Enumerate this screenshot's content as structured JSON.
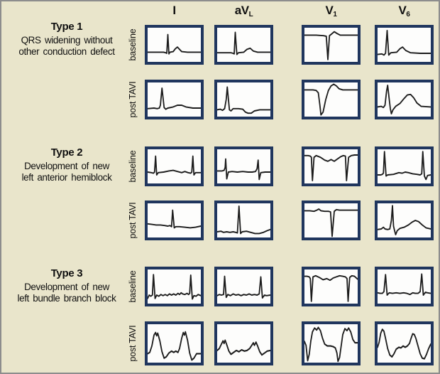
{
  "figure": {
    "columns": [
      {
        "main": "I",
        "sub": ""
      },
      {
        "main": "aV",
        "sub": "L"
      },
      {
        "main": "V",
        "sub": "1"
      },
      {
        "main": "V",
        "sub": "6"
      }
    ],
    "row_labels": {
      "baseline": "baseline",
      "post_tavi": "post TAVI"
    },
    "sections": [
      {
        "title": "Type 1",
        "desc1": "QRS widening without",
        "desc2": "other conduction defect"
      },
      {
        "title": "Type 2",
        "desc1": "Development of new",
        "desc2": "left anterior hemiblock"
      },
      {
        "title": "Type 3",
        "desc1": "Development of new",
        "desc2": "left bundle branch block"
      }
    ]
  },
  "colors": {
    "background": "#e9e5cb",
    "panel_border": "#20365e",
    "trace": "#1c1c1c",
    "frame_border": "#8d8d8d",
    "panel_bg": "#fdfdfc",
    "text": "#101010"
  },
  "waves": {
    "t1_baseline": [
      "0,43 22,43 30,43 34,44 36,45 38,12 40,46 42,43 48,42 52,37 56,34 60,38 64,42 75,43 100,43",
      "0,44 16,44 26,44 30,45 32,46 34,8 37,47 40,44 50,43 56,38 62,36 68,41 76,43 100,43",
      "0,13 22,13 36,14 41,15 44,56 47,14 51,11 56,7 61,10 67,13 80,13 100,13",
      "0,47 8,46 12,48 15,45 18,5 21,48 25,44 36,43 42,37 47,34 53,40 62,44 80,45 100,45"
    ],
    "t1_post": [
      "0,46 12,45 18,46 22,45 24,40 27,10 31,44 34,47 38,45 48,43 56,40 64,40 72,43 85,45 100,45",
      "0,48 6,47 10,49 14,46 17,30 19,8 23,48 26,50 30,46 40,46 48,47 53,52 58,54 64,54 70,50 80,48 100,48",
      "0,13 16,13 22,14 26,18 29,40 31,57 35,52 40,30 45,14 50,6 55,3 60,6 65,11 72,13 100,13",
      "0,43 7,42 11,44 14,40 17,15 19,5 22,30 24,46 26,55 29,48 34,42 42,37 50,28 56,22 62,21 68,27 74,36 82,42 100,43"
    ],
    "t2_baseline": [
      "0,40 7,41 11,42 13,40 15,12 17,45 20,41 30,40 40,38 48,37 56,39 64,41 70,39 76,41 81,42 83,40 85,12 87,45 90,41 100,41",
      "0,38 9,38 13,37 15,32 16,17 18,52 21,40 28,39 38,40 48,39 58,40 66,40 72,39 75,34 77,19 79,53 82,41 90,40 100,40",
      "0,11 7,11 11,12 13,14 15,55 18,14 22,11 30,14 38,19 44,21 50,18 56,21 62,17 68,13 73,11 77,12 79,55 83,14 88,11 94,10 100,10",
      "0,45 6,45 9,44 11,42 13,4 16,47 19,45 30,44 40,41 46,42 52,40 58,41 66,43 74,44 80,45 83,43 85,4 88,47 91,53 94,46 100,45"
    ],
    "t2_post": [
      "0,36 8,37 16,38 24,38 32,39 38,40 42,39 45,41 47,12 50,43 53,41 60,41 70,42 80,43 90,42 100,40",
      "0,50 7,49 12,51 18,50 24,51 30,50 35,51 38,52 41,5 44,53 47,50 55,49 63,51 71,53 79,53 87,51 94,48 100,46",
      "0,13 10,13 18,14 23,12 27,10 31,13 38,14 45,14 49,15 52,58 56,14 60,11 66,12 78,12 100,12",
      "0,46 7,45 11,42 14,45 19,46 23,45 26,30 28,4 30,40 32,48 34,55 37,48 42,44 50,42 58,38 65,33 71,30 77,32 84,38 91,43 100,45"
    ],
    "t3_baseline": [
      "0,51 3,45 6,47 9,45 11,9 14,51 17,45 21,47 25,44 29,46 33,44 37,46 41,43 45,45 49,43 53,45 57,42 60,44 63,41 66,43 70,44 74,42 77,44 79,42 81,10 84,52 87,46 91,47 95,44 100,46",
      "0,46 4,44 8,45 12,44 14,12 17,49 20,44 25,46 30,43 35,45 40,44 45,46 50,44 55,45 60,43 65,45 70,44 75,45 79,43 82,13 85,50 89,45 93,46 100,45",
      "0,12 5,12 9,13 11,16 13,56 16,13 21,11 28,14 35,18 42,16 48,19 54,15 60,13 66,11 72,12 77,13 80,16 82,56 85,14 89,11 94,12 100,17",
      "0,41 5,42 9,42 12,39 15,9 18,45 22,41 28,42 35,41 42,42 49,41 55,42 61,44 66,41 71,42 76,42 80,39 83,8 86,45 90,40 94,41 100,42"
    ],
    "t3_post": [
      "0,46 4,44 8,34 12,17 15,13 17,18 19,14 23,26 27,43 31,53 35,51 40,45 45,42 49,44 53,42 57,44 60,38 64,22 67,13 69,17 71,12 75,25 79,45 83,56 87,53 92,46 100,46",
      "0,41 4,38 8,31 11,26 13,30 15,25 18,32 22,42 26,47 31,44 36,41 41,43 46,40 51,42 56,41 61,38 65,33 68,29 70,33 73,28 76,34 80,43 84,48 89,45 94,42 100,41",
      "0,27 3,33 6,57 9,47 12,26 15,12 19,6 23,9 26,5 30,10 34,22 38,31 43,34 49,34 54,35 58,37 61,45 63,58 66,52 69,34 72,16 76,7 80,10 83,6 87,12 91,24 95,29 100,29",
      "0,36 3,28 6,14 9,8 12,11 15,22 19,38 23,48 27,51 31,46 35,39 40,36 44,37 48,34 52,36 56,34 60,30 63,22 66,15 69,16 72,22 76,34 80,46 84,53 88,54 92,47 96,38 100,31"
    ]
  }
}
